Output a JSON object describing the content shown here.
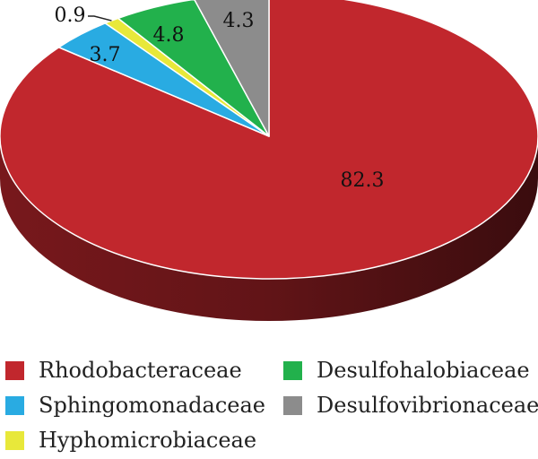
{
  "chart_data": {
    "type": "pie",
    "title": "",
    "categories": [
      "Rhodobacteraceae",
      "Sphingomonadaceae",
      "Hyphomicrobiaceae",
      "Desulfohalobiaceae",
      "Desulfovibrionaceae"
    ],
    "values": [
      82.3,
      3.7,
      0.9,
      4.8,
      4.3
    ],
    "value_labels": [
      "82.3",
      "3.7",
      "0.9",
      "4.8",
      "4.3"
    ],
    "colors": [
      "#c1272d",
      "#29abe2",
      "#e8e83a",
      "#22b14c",
      "#8c8c8c"
    ],
    "style": "3d",
    "legend_position": "bottom"
  },
  "legend": {
    "items": [
      {
        "label": "Rhodobacteraceae",
        "color": "#c1272d"
      },
      {
        "label": "Sphingomonadaceae",
        "color": "#29abe2"
      },
      {
        "label": "Hyphomicrobiaceae",
        "color": "#e8e83a"
      },
      {
        "label": "Desulfohalobiaceae",
        "color": "#22b14c"
      },
      {
        "label": "Desulfovibrionaceae",
        "color": "#8c8c8c"
      }
    ]
  }
}
